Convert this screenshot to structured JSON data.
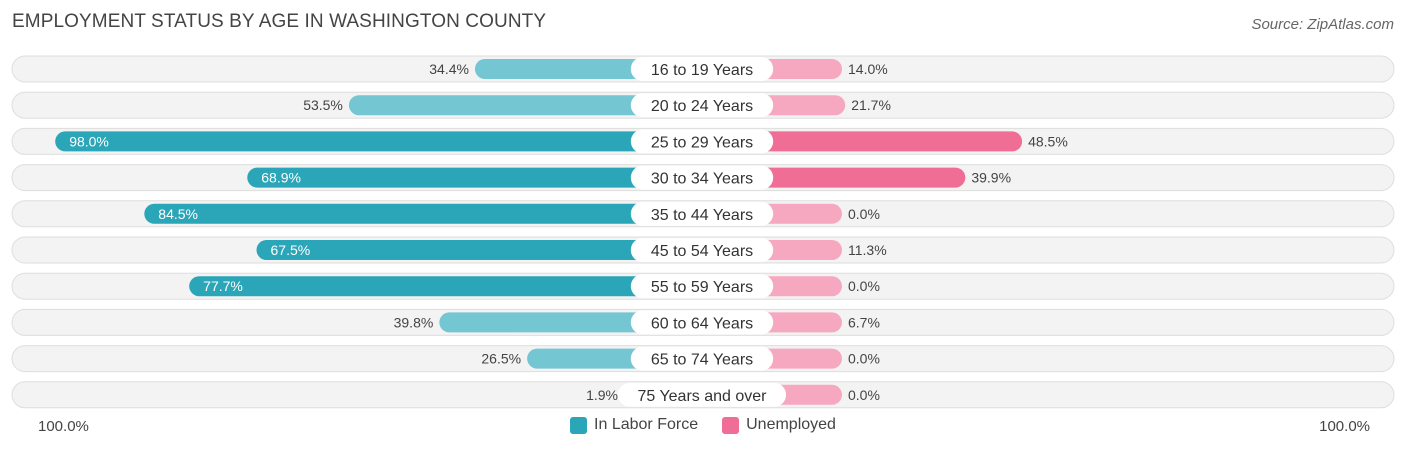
{
  "header": {
    "title": "EMPLOYMENT STATUS BY AGE IN WASHINGTON COUNTY",
    "source": "Source: ZipAtlas.com"
  },
  "chart_data": {
    "type": "bar",
    "orientation": "horizontal-diverging",
    "title": "EMPLOYMENT STATUS BY AGE IN WASHINGTON COUNTY",
    "categories": [
      "16 to 19 Years",
      "20 to 24 Years",
      "25 to 29 Years",
      "30 to 34 Years",
      "35 to 44 Years",
      "45 to 54 Years",
      "55 to 59 Years",
      "60 to 64 Years",
      "65 to 74 Years",
      "75 Years and over"
    ],
    "series": [
      {
        "name": "In Labor Force",
        "side": "left",
        "values": [
          34.4,
          53.5,
          98.0,
          68.9,
          84.5,
          67.5,
          77.7,
          39.8,
          26.5,
          1.9
        ],
        "labels": [
          "34.4%",
          "53.5%",
          "98.0%",
          "68.9%",
          "84.5%",
          "67.5%",
          "77.7%",
          "39.8%",
          "26.5%",
          "1.9%"
        ]
      },
      {
        "name": "Unemployed",
        "side": "right",
        "values": [
          14.0,
          21.7,
          48.5,
          39.9,
          0.0,
          11.3,
          0.0,
          6.7,
          0.0,
          0.0
        ],
        "labels": [
          "14.0%",
          "21.7%",
          "48.5%",
          "39.9%",
          "0.0%",
          "11.3%",
          "0.0%",
          "6.7%",
          "0.0%",
          "0.0%"
        ]
      }
    ],
    "xlim": [
      -100,
      100
    ],
    "axis_left_label": "100.0%",
    "axis_right_label": "100.0%",
    "legend_position": "bottom-center"
  },
  "legend": {
    "labor_label": "In Labor Force",
    "unemployed_label": "Unemployed"
  },
  "colors": {
    "labor_strong": "#2ba5b8",
    "labor_light": "#74c6d3",
    "unemployed_strong": "#f06d96",
    "unemployed_light": "#f7a8c1",
    "row_bg": "#f3f3f3",
    "row_border": "#dedede"
  }
}
